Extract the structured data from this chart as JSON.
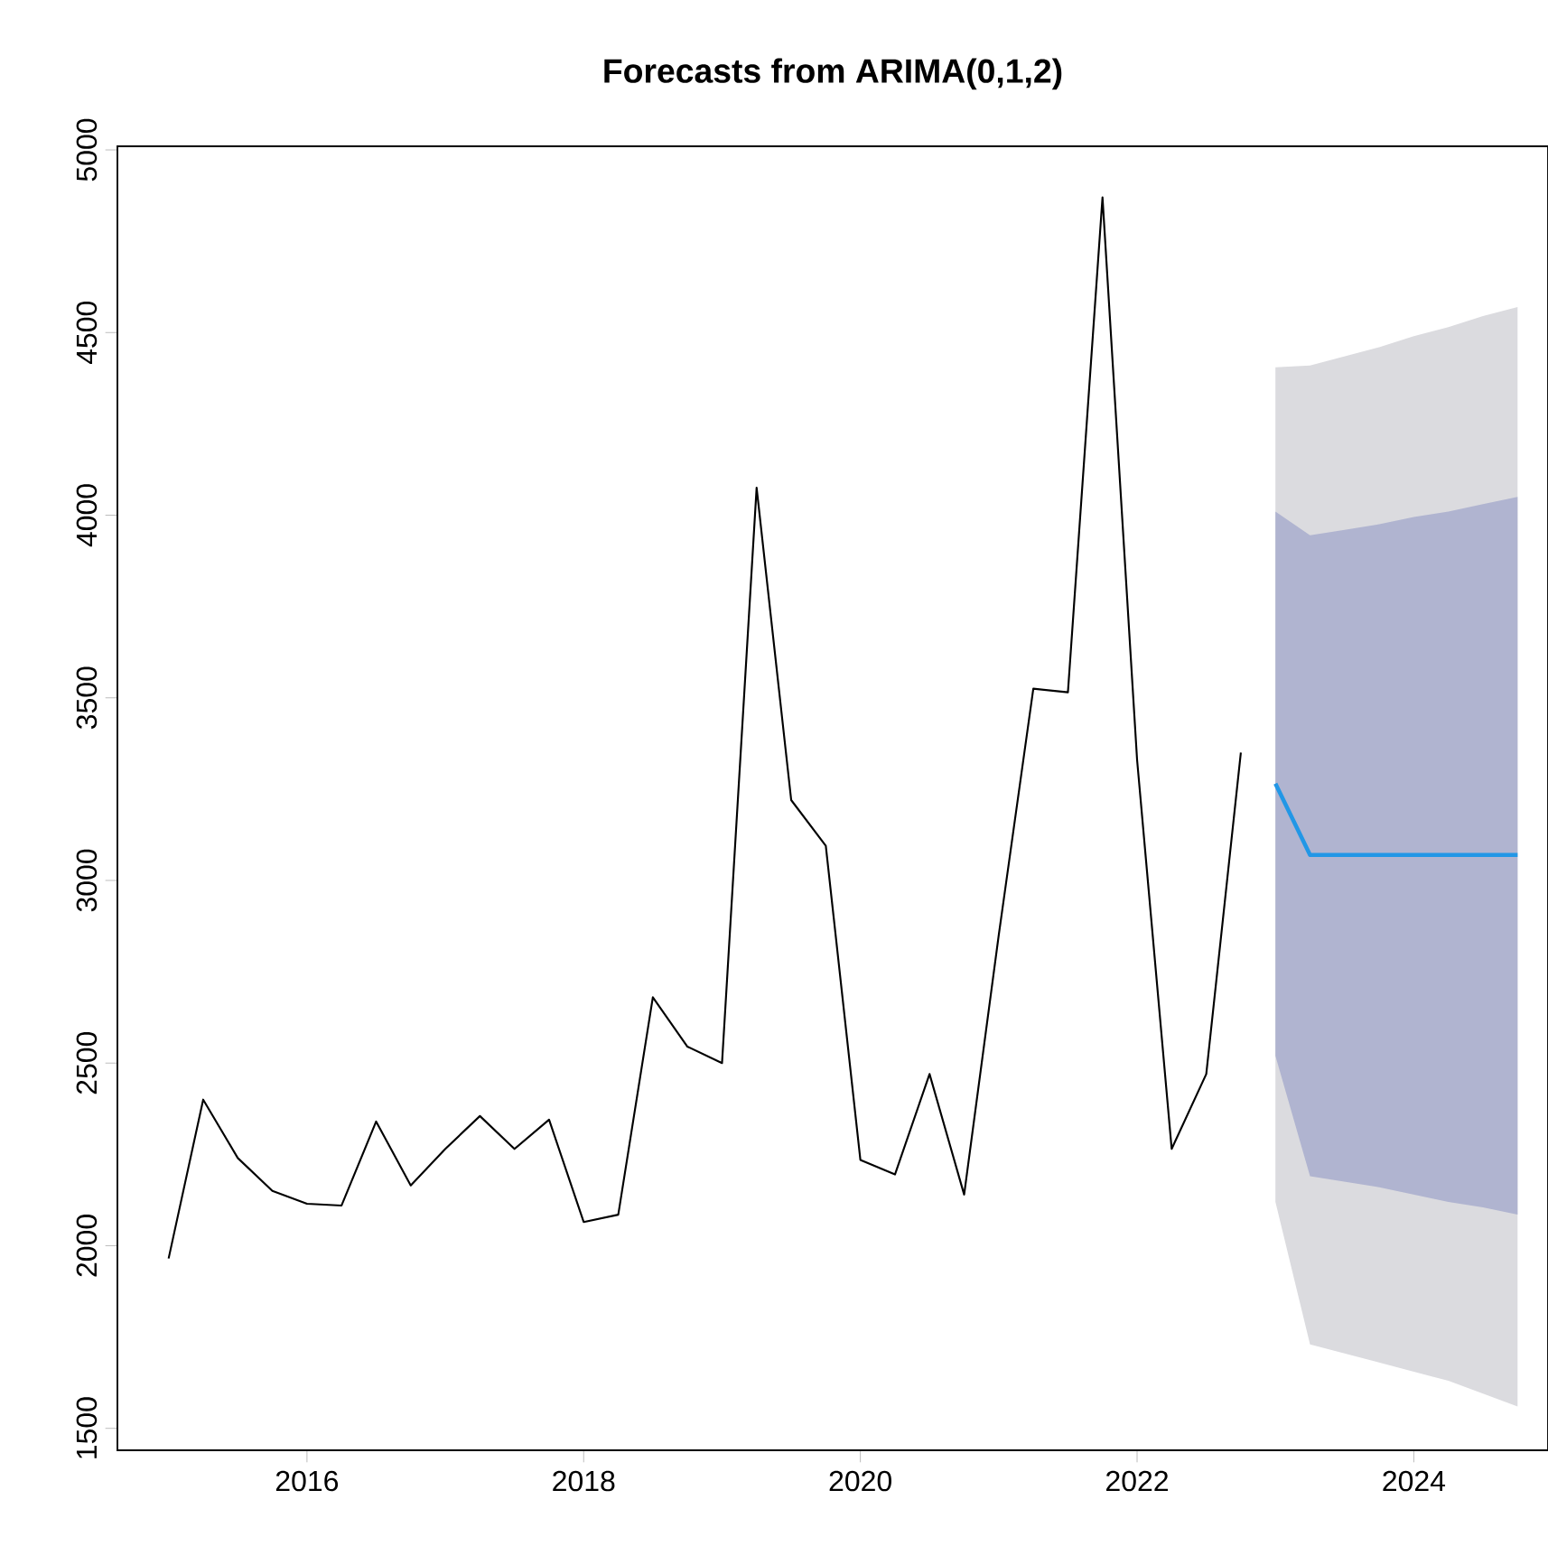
{
  "chart_data": {
    "type": "line",
    "title": "Forecasts from ARIMA(0,1,2)",
    "xlim": [
      2014.63,
      2024.97
    ],
    "ylim": [
      1440,
      5010
    ],
    "xticks": [
      2016,
      2018,
      2020,
      2022,
      2024
    ],
    "yticks": [
      1500,
      2000,
      2500,
      3000,
      3500,
      4000,
      4500,
      5000
    ],
    "series": [
      {
        "type": "area",
        "color": "#dbdbdf",
        "x": [
          2023.0,
          2023.25,
          2023.5,
          2023.75,
          2024.0,
          2024.25,
          2024.5,
          2024.75
        ],
        "values": [
          null,
          null,
          null,
          null,
          null,
          null,
          null,
          null
        ],
        "lower": [
          2120,
          1730,
          1705,
          1680,
          1655,
          1630,
          1595,
          1560
        ],
        "upper": [
          4405,
          4410,
          4435,
          4460,
          4490,
          4515,
          4545,
          4570
        ]
      },
      {
        "type": "area",
        "color": "#b0b4d0",
        "x": [
          2023.0,
          2023.25,
          2023.5,
          2023.75,
          2024.0,
          2024.25,
          2024.5,
          2024.75
        ],
        "values": [
          null,
          null,
          null,
          null,
          null,
          null,
          null,
          null
        ],
        "lower": [
          2520,
          2190,
          2175,
          2160,
          2140,
          2120,
          2105,
          2085
        ],
        "upper": [
          4010,
          3945,
          3960,
          3975,
          3995,
          4010,
          4030,
          4050
        ]
      },
      {
        "color": "#000000",
        "x": [
          2015.0,
          2015.25,
          2015.5,
          2015.75,
          2016.0,
          2016.25,
          2016.5,
          2016.75,
          2017.0,
          2017.25,
          2017.5,
          2017.75,
          2018.0,
          2018.25,
          2018.5,
          2018.75,
          2019.0,
          2019.25,
          2019.5,
          2019.75,
          2020.0,
          2020.25,
          2020.5,
          2020.75,
          2021.0,
          2021.25,
          2021.5,
          2021.75,
          2022.0,
          2022.25,
          2022.5,
          2022.75
        ],
        "values": [
          1965,
          2400,
          2240,
          2150,
          2115,
          2110,
          2340,
          2165,
          2265,
          2355,
          2265,
          2345,
          2065,
          2085,
          2680,
          2545,
          2500,
          4075,
          3220,
          3095,
          2235,
          2195,
          2470,
          2140,
          2850,
          3525,
          3515,
          4870,
          3330,
          2265,
          2470,
          3350
        ]
      },
      {
        "color": "#2297e6",
        "x": [
          2023.0,
          2023.25,
          2023.5,
          2023.75,
          2024.0,
          2024.25,
          2024.5,
          2024.75
        ],
        "values": [
          3265,
          3070,
          3070,
          3070,
          3070,
          3070,
          3070,
          3070
        ]
      }
    ]
  }
}
